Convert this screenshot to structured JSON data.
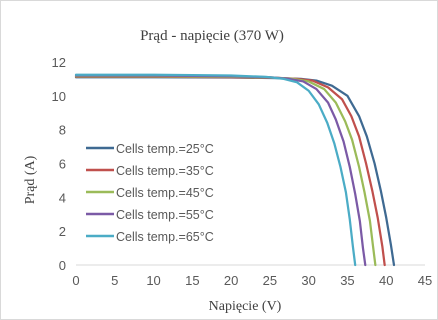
{
  "chart_data": {
    "type": "line",
    "title": "Prąd - napięcie (370 W)",
    "xlabel": "Napięcie (V)",
    "ylabel": "Prąd (A)",
    "xlim": [
      0,
      45
    ],
    "ylim": [
      0,
      12
    ],
    "xticks": [
      0,
      5,
      10,
      15,
      20,
      25,
      30,
      35,
      40,
      45
    ],
    "yticks": [
      0,
      2,
      4,
      6,
      8,
      10,
      12
    ],
    "grid": false,
    "legend_position": "left",
    "series": [
      {
        "name": "Cells temp.=25°C",
        "color": "#3F6A92",
        "x": [
          0,
          10,
          20,
          26,
          29,
          31,
          33,
          35,
          36.5,
          37.5,
          38.5,
          39.3,
          40,
          40.6,
          41
        ],
        "y": [
          11.1,
          11.1,
          11.08,
          11.05,
          11.0,
          10.9,
          10.6,
          10.0,
          8.8,
          7.6,
          6.0,
          4.4,
          2.8,
          1.2,
          0
        ]
      },
      {
        "name": "Cells temp.=35°C",
        "color": "#C0504D",
        "x": [
          0,
          10,
          20,
          26,
          28.5,
          30.5,
          32.5,
          34.3,
          35.5,
          36.5,
          37.4,
          38.2,
          38.9,
          39.5,
          39.8
        ],
        "y": [
          11.13,
          11.13,
          11.1,
          11.06,
          11.0,
          10.9,
          10.5,
          9.8,
          8.8,
          7.6,
          6.0,
          4.4,
          2.8,
          1.1,
          0
        ]
      },
      {
        "name": "Cells temp.=45°C",
        "color": "#9BBB59",
        "x": [
          0,
          10,
          20,
          25.5,
          28,
          30,
          32,
          33.5,
          34.7,
          35.6,
          36.5,
          37.2,
          37.9,
          38.3,
          38.6
        ],
        "y": [
          11.16,
          11.16,
          11.13,
          11.08,
          11.0,
          10.85,
          10.4,
          9.6,
          8.5,
          7.4,
          5.8,
          4.3,
          2.6,
          1.1,
          0
        ]
      },
      {
        "name": "Cells temp.=55°C",
        "color": "#7B5AA6",
        "x": [
          0,
          10,
          20,
          25,
          27.5,
          29.3,
          31,
          32.5,
          33.5,
          34.5,
          35.3,
          36.0,
          36.6,
          37.0,
          37.3
        ],
        "y": [
          11.2,
          11.2,
          11.16,
          11.1,
          11.0,
          10.85,
          10.4,
          9.6,
          8.6,
          7.3,
          5.8,
          4.2,
          2.6,
          1.0,
          0
        ]
      },
      {
        "name": "Cells temp.=65°C",
        "color": "#4BACC6",
        "x": [
          0,
          10,
          20,
          24.5,
          26.8,
          28.5,
          30,
          31.3,
          32.4,
          33.3,
          34.1,
          34.8,
          35.3,
          35.7,
          36
        ],
        "y": [
          11.25,
          11.25,
          11.2,
          11.12,
          11.0,
          10.8,
          10.3,
          9.5,
          8.4,
          7.2,
          5.8,
          4.3,
          2.7,
          1.1,
          0
        ]
      }
    ]
  }
}
